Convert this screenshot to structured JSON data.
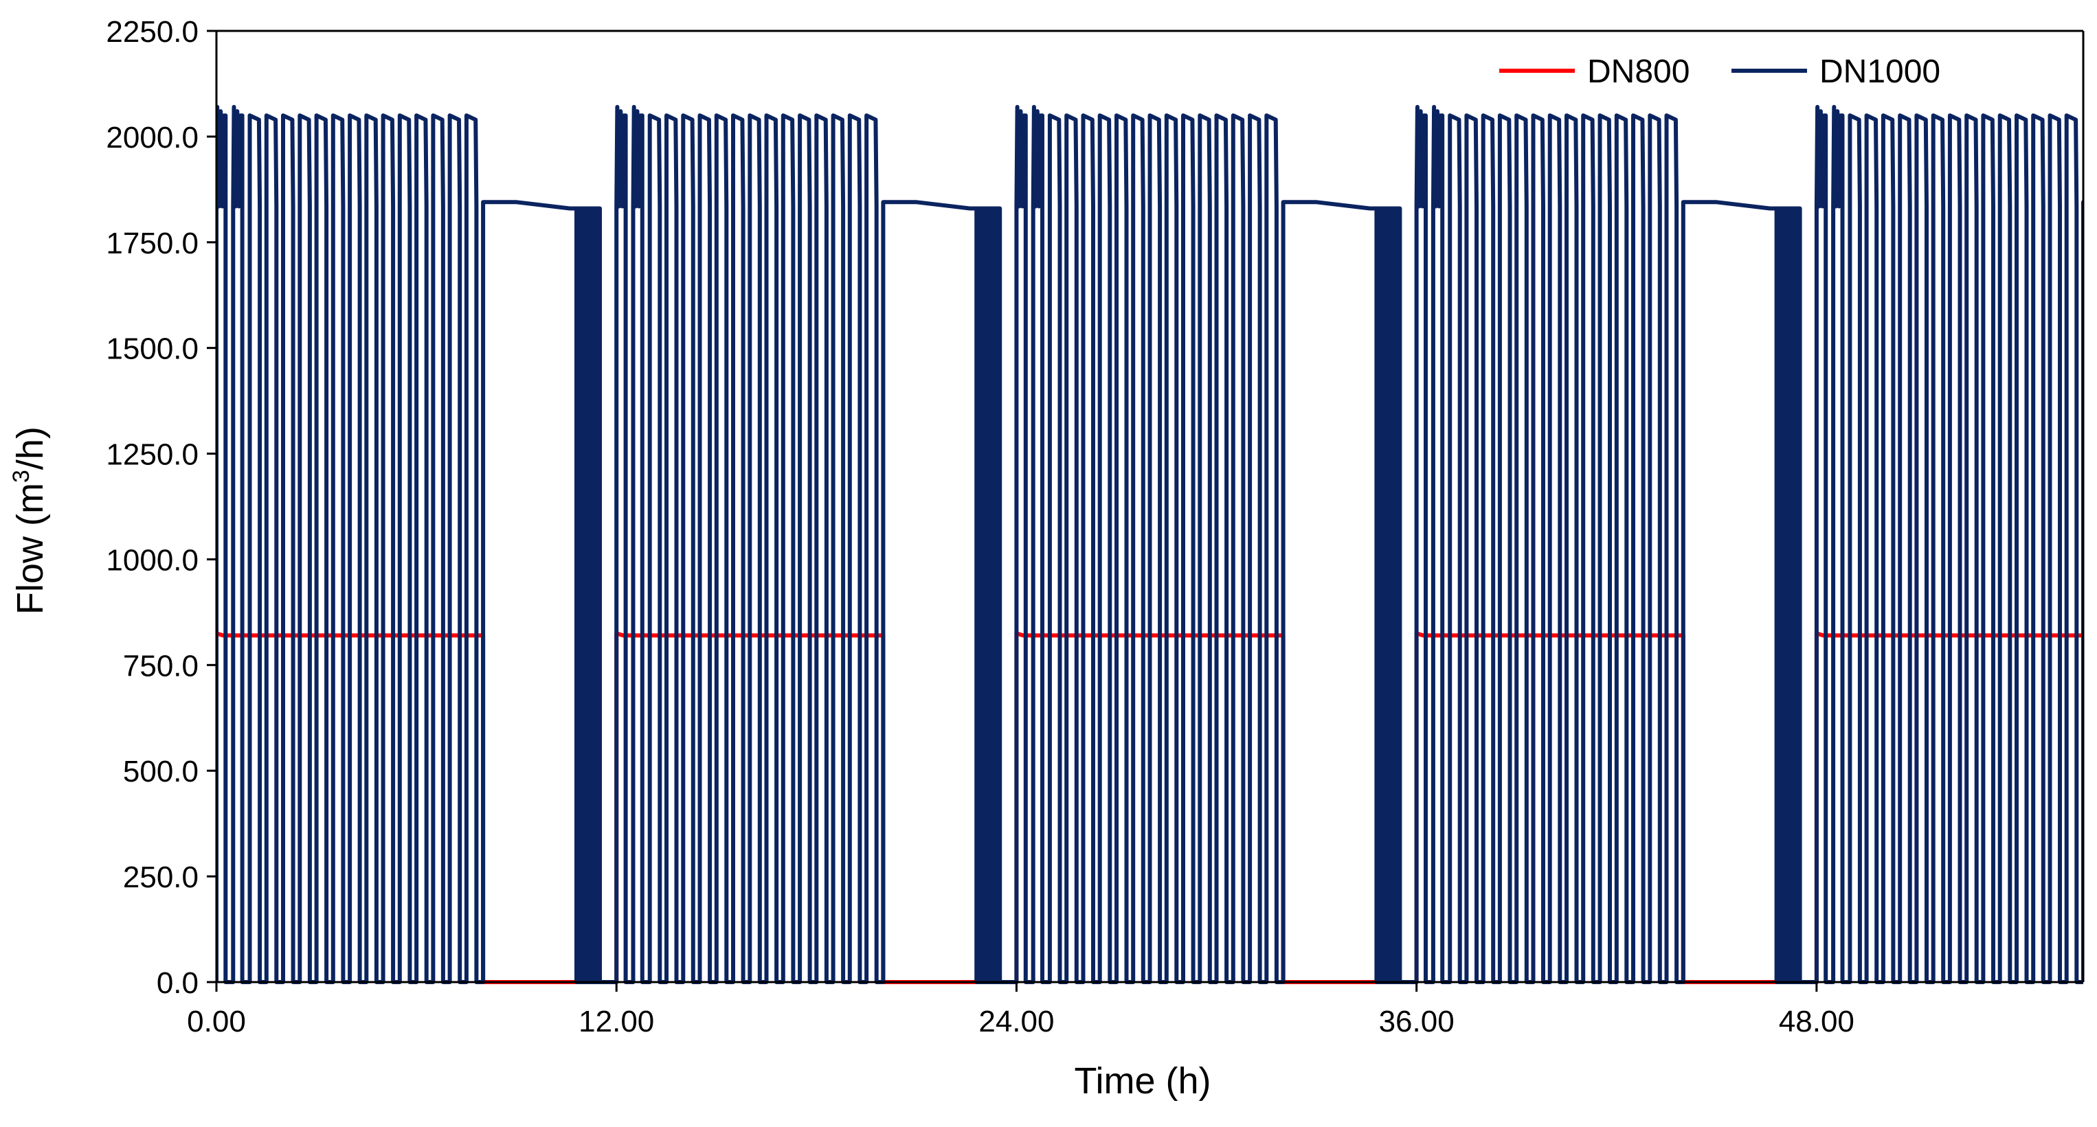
{
  "chart_data": {
    "type": "line",
    "title": "",
    "xlabel": "Time (h)",
    "ylabel": {
      "prefix": "Flow (m",
      "sup": "3",
      "suffix": "/h)"
    },
    "xlim": [
      0,
      56
    ],
    "ylim": [
      0,
      2250
    ],
    "xticks": [
      0,
      12,
      24,
      36,
      48
    ],
    "xtick_labels": [
      "0.00",
      "12.00",
      "24.00",
      "36.00",
      "48.00"
    ],
    "yticks": [
      0,
      250,
      500,
      750,
      1000,
      1250,
      1500,
      1750,
      2000,
      2250
    ],
    "ytick_labels": [
      "0.0",
      "250.0",
      "500.0",
      "750.0",
      "1000.0",
      "1250.0",
      "1500.0",
      "1750.0",
      "2000.0",
      "2250.0"
    ],
    "grid": false,
    "legend_position": "top-right",
    "cycle": {
      "period_h": 12,
      "pulsing_duration_h": 8.0,
      "pulse_count": 16,
      "dn1000_peak": 2050,
      "dn1000_peak_spike": 2070,
      "dn1000_trough": 1835,
      "dn1000_plateau": 1845,
      "dn1000_plateau_end": 1830,
      "dn1000_tail_start_h": 10.8,
      "dn1000_tail_end_h": 11.5,
      "dn800_level": 820,
      "dn800_level_start": 825
    },
    "series": [
      {
        "name": "DN800",
        "color": "#ff0000"
      },
      {
        "name": "DN1000",
        "color": "#0b2460"
      }
    ]
  }
}
